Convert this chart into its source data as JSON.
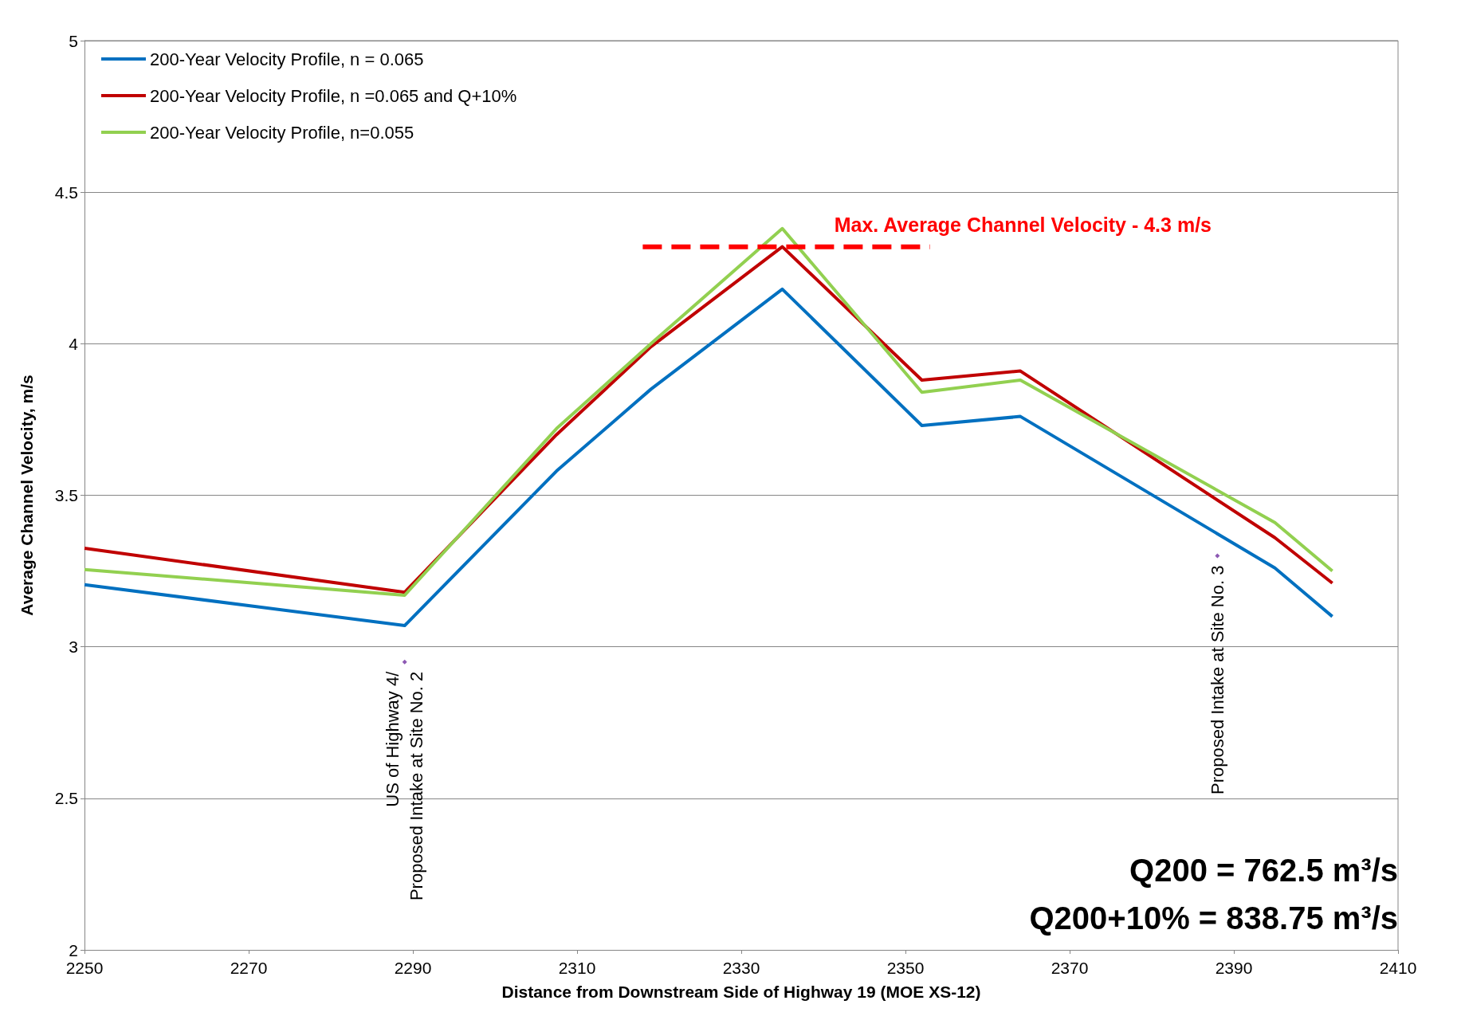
{
  "chart_data": {
    "type": "line",
    "xlabel": "Distance from Downstream Side of Highway 19 (MOE XS-12)",
    "ylabel": "Average Channel Velocity, m/s",
    "xlim": [
      2250,
      2410
    ],
    "xticks": [
      2250,
      2270,
      2290,
      2310,
      2330,
      2350,
      2370,
      2390,
      2410
    ],
    "ylim": [
      2,
      5
    ],
    "yticks": [
      2,
      2.5,
      3,
      3.5,
      4,
      4.5,
      5
    ],
    "grid": "y",
    "legend": "top left",
    "marker": "none",
    "line_style": "solid",
    "x": [
      2250,
      2289,
      2307.5,
      2319,
      2335,
      2352,
      2364,
      2395,
      2402
    ],
    "series": [
      {
        "name": "200-Year Velocity Profile, n = 0.065",
        "color": "#0070c0",
        "values": [
          3.205,
          3.07,
          3.58,
          3.85,
          4.18,
          3.73,
          3.76,
          3.26,
          3.1
        ]
      },
      {
        "name": "200-Year Velocity Profile, n =0.065 and Q+10%",
        "color": "#c00000",
        "values": [
          3.325,
          3.18,
          3.7,
          3.99,
          4.32,
          3.88,
          3.91,
          3.36,
          3.21
        ]
      },
      {
        "name": "200-Year Velocity Profile, n=0.055",
        "color": "#92d050",
        "values": [
          3.255,
          3.17,
          3.72,
          4.0,
          4.38,
          3.84,
          3.88,
          3.41,
          3.25
        ]
      },
      {
        "type": "line",
        "x": [
          2318,
          2353
        ],
        "values": [
          4.32,
          4.32
        ],
        "color": "#ff0000",
        "line_style": "dashed"
      },
      {
        "type": "scatter",
        "x": [
          2289,
          2388
        ],
        "values": [
          2.95,
          3.3
        ],
        "color": "#7030a0",
        "marker": "diamond"
      }
    ],
    "annotations": [
      "Max. Average Channel Velocity - 4.3 m/s",
      {
        "text": "US of Highway 4/\nProposed Intake at Site No. 2",
        "x": 2289,
        "y": 2.95
      },
      {
        "text": "Proposed Intake at Site No. 3",
        "x": 2388,
        "y": 3.3
      },
      "Q200 = 762.5 m³/s",
      "Q200+10% = 838.75 m³/s"
    ]
  }
}
